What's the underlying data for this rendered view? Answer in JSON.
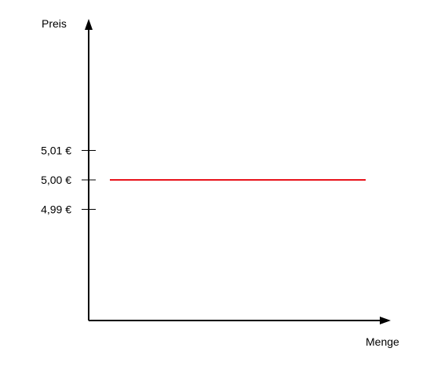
{
  "chart_data": {
    "type": "line",
    "title": "",
    "ylabel": "Preis",
    "xlabel": "Menge",
    "y_ticks": [
      {
        "value": 5.01,
        "label": "5,01 €"
      },
      {
        "value": 5.0,
        "label": "5,00 €"
      },
      {
        "value": 4.99,
        "label": "4,99 €"
      }
    ],
    "series": [
      {
        "values": [
          5.0,
          5.0
        ],
        "color": "#e8131b"
      }
    ],
    "grid": false,
    "legend": "none"
  }
}
